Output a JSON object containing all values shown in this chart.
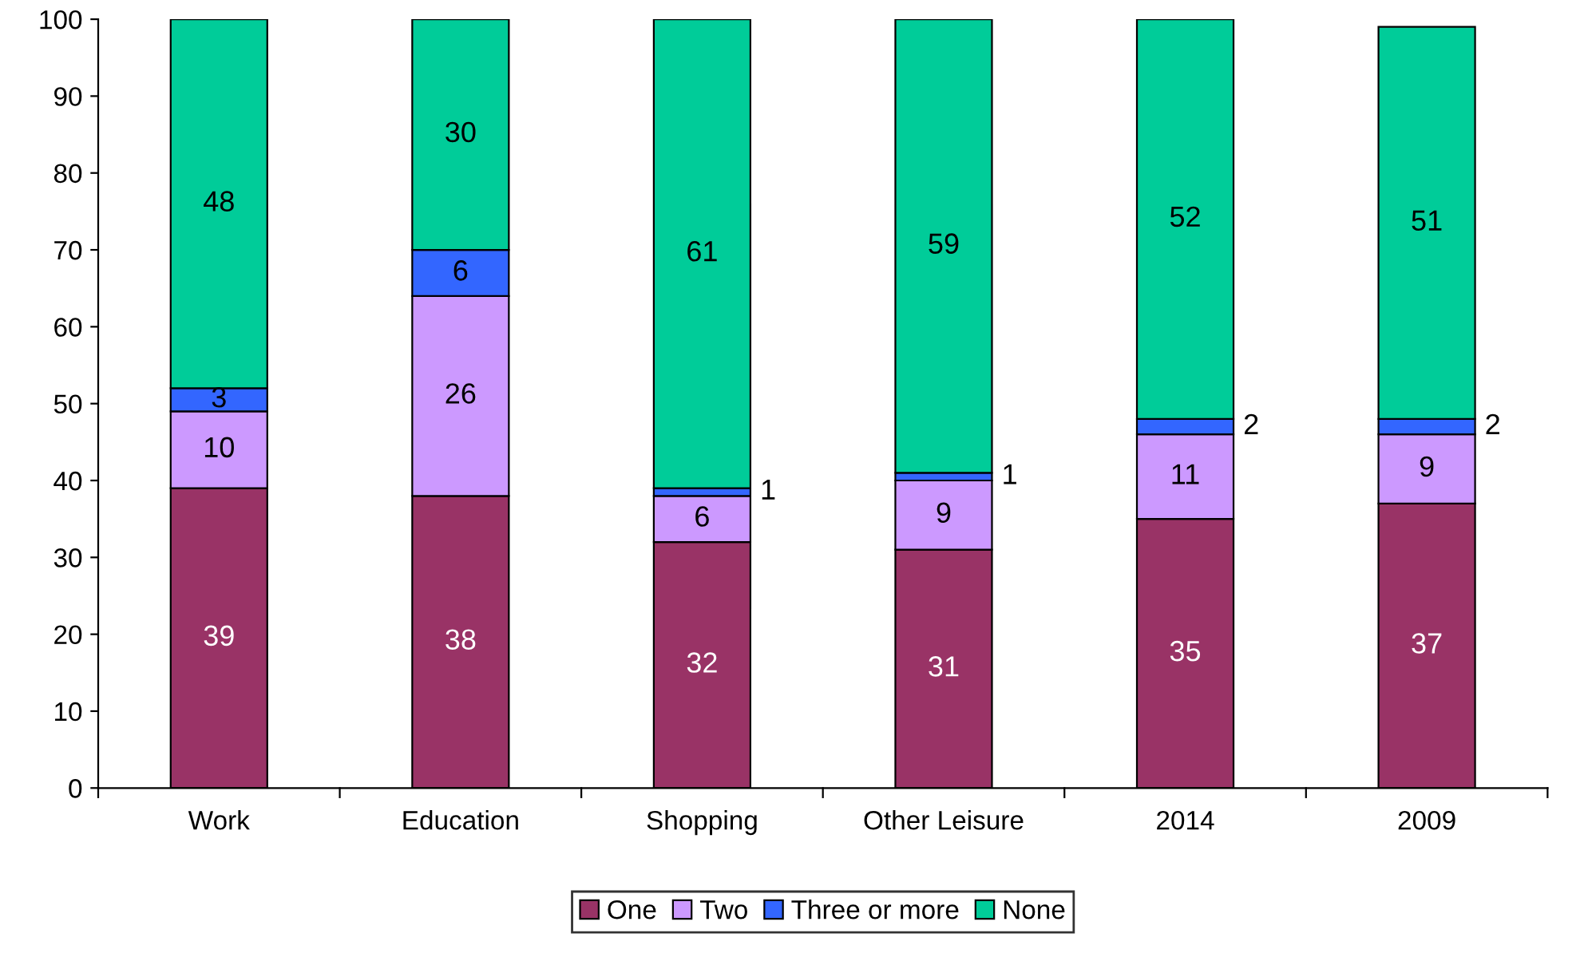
{
  "chart_data": {
    "type": "bar",
    "stacked": true,
    "categories": [
      "Work",
      "Education",
      "Shopping",
      "Other Leisure",
      "2014",
      "2009"
    ],
    "series": [
      {
        "name": "One",
        "color": "#993366",
        "values": [
          39,
          38,
          32,
          31,
          35,
          37
        ]
      },
      {
        "name": "Two",
        "color": "#cc99ff",
        "values": [
          10,
          26,
          6,
          9,
          11,
          9
        ]
      },
      {
        "name": "Three or more",
        "color": "#3366ff",
        "values": [
          3,
          6,
          1,
          1,
          2,
          2
        ]
      },
      {
        "name": "None",
        "color": "#00cc99",
        "values": [
          48,
          30,
          61,
          59,
          52,
          51
        ]
      }
    ],
    "ylim": [
      0,
      100
    ],
    "yticks": [
      0,
      10,
      20,
      30,
      40,
      50,
      60,
      70,
      80,
      90,
      100
    ],
    "data_labels": true,
    "grid": false,
    "legend": "bottom"
  }
}
